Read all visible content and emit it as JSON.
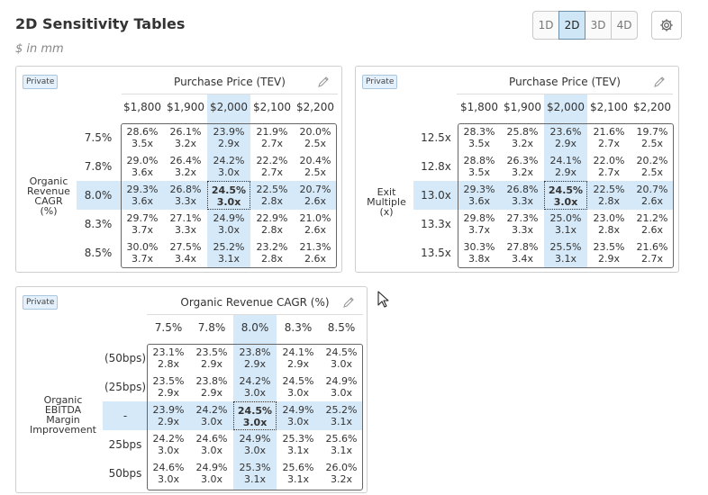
{
  "page": {
    "title": "2D Sensitivity Tables",
    "subtitle": "$ in mm"
  },
  "mode_buttons": [
    "1D",
    "2D",
    "3D",
    "4D"
  ],
  "active_mode": "2D",
  "icons": {
    "settings": "gear-icon",
    "edit": "pencil-icon",
    "cursor": "mouse-pointer-icon"
  },
  "colors": {
    "highlight": "#d6e9f8",
    "badge_bg": "#e4f0fb",
    "active_button": "#cfe6f7"
  },
  "tables": [
    {
      "badge": "Private",
      "column_title": "Purchase Price (TEV)",
      "row_axis_label": [
        "Organic",
        "Revenue",
        "CAGR",
        "(%)"
      ],
      "col_headers": [
        "$1,800",
        "$1,900",
        "$2,000",
        "$2,100",
        "$2,200"
      ],
      "row_headers": [
        "7.5%",
        "7.8%",
        "8.0%",
        "8.3%",
        "8.5%"
      ],
      "cells": [
        [
          [
            "28.6%",
            "3.5x"
          ],
          [
            "26.1%",
            "3.2x"
          ],
          [
            "23.9%",
            "2.9x"
          ],
          [
            "21.9%",
            "2.7x"
          ],
          [
            "20.0%",
            "2.5x"
          ]
        ],
        [
          [
            "29.0%",
            "3.6x"
          ],
          [
            "26.4%",
            "3.2x"
          ],
          [
            "24.2%",
            "3.0x"
          ],
          [
            "22.2%",
            "2.7x"
          ],
          [
            "20.4%",
            "2.5x"
          ]
        ],
        [
          [
            "29.3%",
            "3.6x"
          ],
          [
            "26.8%",
            "3.3x"
          ],
          [
            "24.5%",
            "3.0x"
          ],
          [
            "22.5%",
            "2.8x"
          ],
          [
            "20.7%",
            "2.6x"
          ]
        ],
        [
          [
            "29.7%",
            "3.7x"
          ],
          [
            "27.1%",
            "3.3x"
          ],
          [
            "24.9%",
            "3.0x"
          ],
          [
            "22.9%",
            "2.8x"
          ],
          [
            "21.0%",
            "2.6x"
          ]
        ],
        [
          [
            "30.0%",
            "3.7x"
          ],
          [
            "27.5%",
            "3.4x"
          ],
          [
            "25.2%",
            "3.1x"
          ],
          [
            "23.2%",
            "2.8x"
          ],
          [
            "21.3%",
            "2.6x"
          ]
        ]
      ]
    },
    {
      "badge": "Private",
      "column_title": "Purchase Price (TEV)",
      "row_axis_label": [
        "Exit",
        "Multiple",
        "(x)"
      ],
      "col_headers": [
        "$1,800",
        "$1,900",
        "$2,000",
        "$2,100",
        "$2,200"
      ],
      "row_headers": [
        "12.5x",
        "12.8x",
        "13.0x",
        "13.3x",
        "13.5x"
      ],
      "cells": [
        [
          [
            "28.3%",
            "3.5x"
          ],
          [
            "25.8%",
            "3.2x"
          ],
          [
            "23.6%",
            "2.9x"
          ],
          [
            "21.6%",
            "2.7x"
          ],
          [
            "19.7%",
            "2.5x"
          ]
        ],
        [
          [
            "28.8%",
            "3.5x"
          ],
          [
            "26.3%",
            "3.2x"
          ],
          [
            "24.1%",
            "2.9x"
          ],
          [
            "22.0%",
            "2.7x"
          ],
          [
            "20.2%",
            "2.5x"
          ]
        ],
        [
          [
            "29.3%",
            "3.6x"
          ],
          [
            "26.8%",
            "3.3x"
          ],
          [
            "24.5%",
            "3.0x"
          ],
          [
            "22.5%",
            "2.8x"
          ],
          [
            "20.7%",
            "2.6x"
          ]
        ],
        [
          [
            "29.8%",
            "3.7x"
          ],
          [
            "27.3%",
            "3.3x"
          ],
          [
            "25.0%",
            "3.1x"
          ],
          [
            "23.0%",
            "2.8x"
          ],
          [
            "21.2%",
            "2.6x"
          ]
        ],
        [
          [
            "30.3%",
            "3.8x"
          ],
          [
            "27.8%",
            "3.4x"
          ],
          [
            "25.5%",
            "3.1x"
          ],
          [
            "23.5%",
            "2.9x"
          ],
          [
            "21.6%",
            "2.7x"
          ]
        ]
      ]
    },
    {
      "badge": "Private",
      "column_title": "Organic Revenue CAGR (%)",
      "row_axis_label": [
        "Organic",
        "EBITDA",
        "Margin",
        "Improvement"
      ],
      "col_headers": [
        "7.5%",
        "7.8%",
        "8.0%",
        "8.3%",
        "8.5%"
      ],
      "row_headers": [
        "(50bps)",
        "(25bps)",
        "-",
        "25bps",
        "50bps"
      ],
      "cells": [
        [
          [
            "23.1%",
            "2.8x"
          ],
          [
            "23.5%",
            "2.9x"
          ],
          [
            "23.8%",
            "2.9x"
          ],
          [
            "24.1%",
            "2.9x"
          ],
          [
            "24.5%",
            "3.0x"
          ]
        ],
        [
          [
            "23.5%",
            "2.9x"
          ],
          [
            "23.8%",
            "2.9x"
          ],
          [
            "24.2%",
            "3.0x"
          ],
          [
            "24.5%",
            "3.0x"
          ],
          [
            "24.9%",
            "3.0x"
          ]
        ],
        [
          [
            "23.9%",
            "2.9x"
          ],
          [
            "24.2%",
            "3.0x"
          ],
          [
            "24.5%",
            "3.0x"
          ],
          [
            "24.9%",
            "3.0x"
          ],
          [
            "25.2%",
            "3.1x"
          ]
        ],
        [
          [
            "24.2%",
            "3.0x"
          ],
          [
            "24.6%",
            "3.0x"
          ],
          [
            "24.9%",
            "3.0x"
          ],
          [
            "25.3%",
            "3.1x"
          ],
          [
            "25.6%",
            "3.1x"
          ]
        ],
        [
          [
            "24.6%",
            "3.0x"
          ],
          [
            "24.9%",
            "3.0x"
          ],
          [
            "25.3%",
            "3.1x"
          ],
          [
            "25.6%",
            "3.1x"
          ],
          [
            "26.0%",
            "3.2x"
          ]
        ]
      ]
    }
  ]
}
